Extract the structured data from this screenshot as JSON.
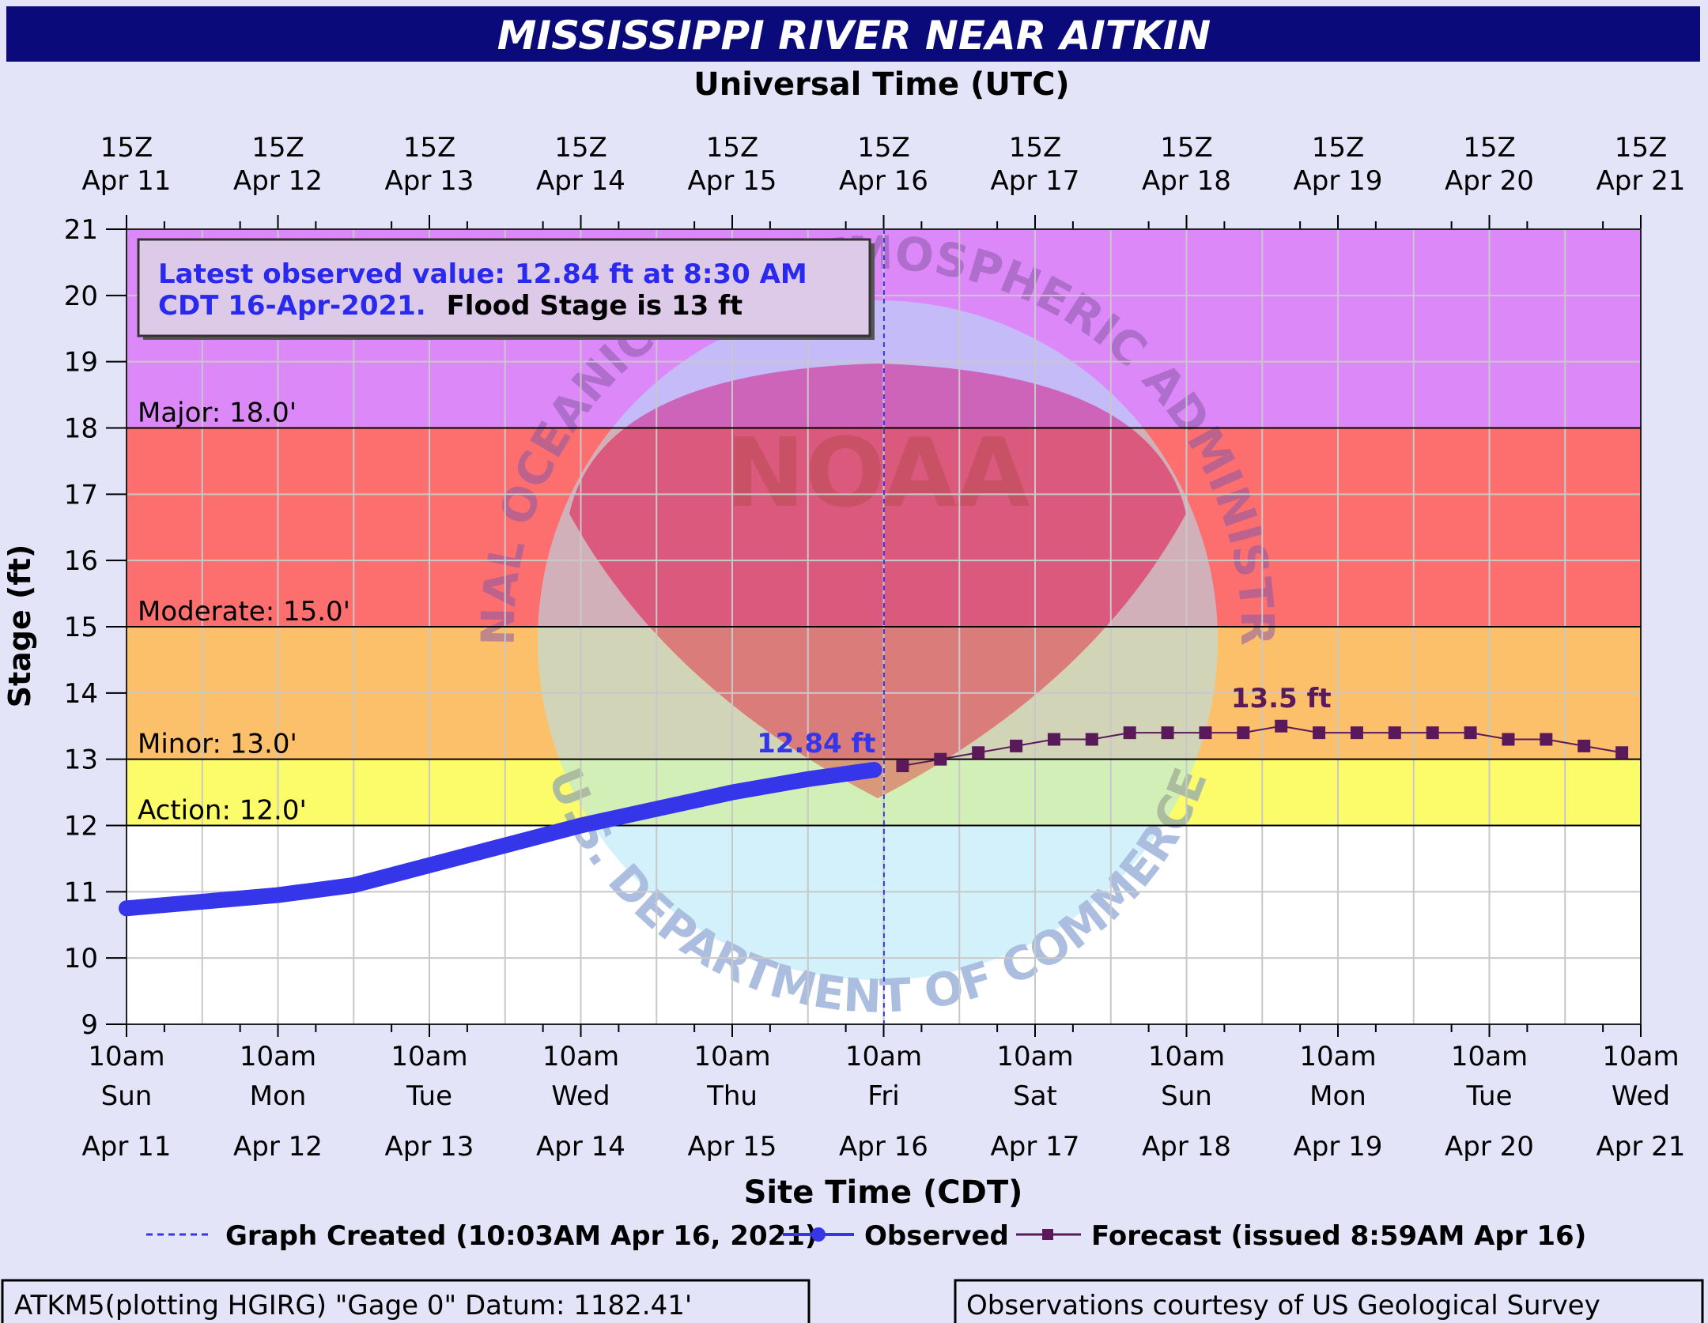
{
  "title": "MISSISSIPPI RIVER NEAR AITKIN",
  "top_axis_title": "Universal Time (UTC)",
  "top_ticks": [
    {
      "l1": "15Z",
      "l2": "Apr 11"
    },
    {
      "l1": "15Z",
      "l2": "Apr 12"
    },
    {
      "l1": "15Z",
      "l2": "Apr 13"
    },
    {
      "l1": "15Z",
      "l2": "Apr 14"
    },
    {
      "l1": "15Z",
      "l2": "Apr 15"
    },
    {
      "l1": "15Z",
      "l2": "Apr 16"
    },
    {
      "l1": "15Z",
      "l2": "Apr 17"
    },
    {
      "l1": "15Z",
      "l2": "Apr 18"
    },
    {
      "l1": "15Z",
      "l2": "Apr 19"
    },
    {
      "l1": "15Z",
      "l2": "Apr 20"
    },
    {
      "l1": "15Z",
      "l2": "Apr 21"
    }
  ],
  "bottom_axis_title": "Site Time (CDT)",
  "bottom_ticks": [
    {
      "l1": "10am",
      "l2": "Sun",
      "l3": "Apr 11"
    },
    {
      "l1": "10am",
      "l2": "Mon",
      "l3": "Apr 12"
    },
    {
      "l1": "10am",
      "l2": "Tue",
      "l3": "Apr 13"
    },
    {
      "l1": "10am",
      "l2": "Wed",
      "l3": "Apr 14"
    },
    {
      "l1": "10am",
      "l2": "Thu",
      "l3": "Apr 15"
    },
    {
      "l1": "10am",
      "l2": "Fri",
      "l3": "Apr 16"
    },
    {
      "l1": "10am",
      "l2": "Sat",
      "l3": "Apr 17"
    },
    {
      "l1": "10am",
      "l2": "Sun",
      "l3": "Apr 18"
    },
    {
      "l1": "10am",
      "l2": "Mon",
      "l3": "Apr 19"
    },
    {
      "l1": "10am",
      "l2": "Tue",
      "l3": "Apr 20"
    },
    {
      "l1": "10am",
      "l2": "Wed",
      "l3": "Apr 21"
    }
  ],
  "info_box": {
    "line1": "Latest observed value: 12.84 ft at 8:30 AM",
    "line2_blue": "CDT 16-Apr-2021.",
    "line2_black": "Flood Stage is 13  ft"
  },
  "legend": {
    "created": "Graph Created (10:03AM Apr 16, 2021)",
    "observed": "Observed",
    "forecast": "Forecast (issued 8:59AM Apr 16)"
  },
  "footer": {
    "left": "ATKM5(plotting HGIRG) \"Gage 0\" Datum: 1182.41'",
    "right": "Observations courtesy of US Geological Survey"
  },
  "watermark": {
    "arc_top": "NATIONAL OCEANIC AND ATMOSPHERIC ADMINISTRATION",
    "arc_bottom": "U.S. DEPARTMENT OF COMMERCE",
    "center": "NOAA"
  },
  "colors": {
    "title_bar": "#0a0a7a",
    "background": "#e4e4f8",
    "major": "#dd88f8",
    "moderate": "#fd6e6e",
    "minor": "#fcc06a",
    "action": "#fcfc6a",
    "normal": "#ffffff",
    "observed": "#3535ea",
    "forecast": "#5a1a5a"
  },
  "chart_data": {
    "type": "line",
    "title": "MISSISSIPPI RIVER NEAR AITKIN",
    "xlabel": "Site Time (CDT)",
    "x2label": "Universal Time (UTC)",
    "ylabel": "Stage (ft)",
    "xlim": [
      "2021-04-11 10:00",
      "2021-04-21 10:00"
    ],
    "ylim": [
      9,
      21
    ],
    "y_ticks": [
      9,
      10,
      11,
      12,
      13,
      14,
      15,
      16,
      17,
      18,
      19,
      20,
      21
    ],
    "grid": true,
    "legend_position": "bottom",
    "thresholds": [
      {
        "name": "Action",
        "label": "Action: 12.0'",
        "value": 12.0
      },
      {
        "name": "Minor",
        "label": "Minor: 13.0'",
        "value": 13.0
      },
      {
        "name": "Moderate",
        "label": "Moderate: 15.0'",
        "value": 15.0
      },
      {
        "name": "Major",
        "label": "Major: 18.0'",
        "value": 18.0
      }
    ],
    "graph_created": "2021-04-16 10:03",
    "series": [
      {
        "name": "Observed",
        "x": [
          "2021-04-11 10:00",
          "2021-04-11 22:00",
          "2021-04-12 10:00",
          "2021-04-12 22:00",
          "2021-04-13 10:00",
          "2021-04-13 22:00",
          "2021-04-14 10:00",
          "2021-04-14 22:00",
          "2021-04-15 10:00",
          "2021-04-15 22:00",
          "2021-04-16 08:30"
        ],
        "y": [
          10.75,
          10.85,
          10.95,
          11.1,
          11.4,
          11.7,
          12.0,
          12.25,
          12.5,
          12.7,
          12.84
        ],
        "label": "12.84 ft"
      },
      {
        "name": "Forecast (issued 8:59AM Apr 16)",
        "x": [
          "2021-04-16 13:00",
          "2021-04-16 19:00",
          "2021-04-17 01:00",
          "2021-04-17 07:00",
          "2021-04-17 13:00",
          "2021-04-17 19:00",
          "2021-04-18 01:00",
          "2021-04-18 07:00",
          "2021-04-18 13:00",
          "2021-04-18 19:00",
          "2021-04-19 01:00",
          "2021-04-19 07:00",
          "2021-04-19 13:00",
          "2021-04-19 19:00",
          "2021-04-20 01:00",
          "2021-04-20 07:00",
          "2021-04-20 13:00",
          "2021-04-20 19:00",
          "2021-04-21 01:00",
          "2021-04-21 07:00"
        ],
        "y": [
          12.9,
          13.0,
          13.1,
          13.2,
          13.3,
          13.3,
          13.4,
          13.4,
          13.4,
          13.4,
          13.5,
          13.4,
          13.4,
          13.4,
          13.4,
          13.4,
          13.3,
          13.3,
          13.2,
          13.1
        ],
        "label": "13.5 ft"
      }
    ]
  }
}
